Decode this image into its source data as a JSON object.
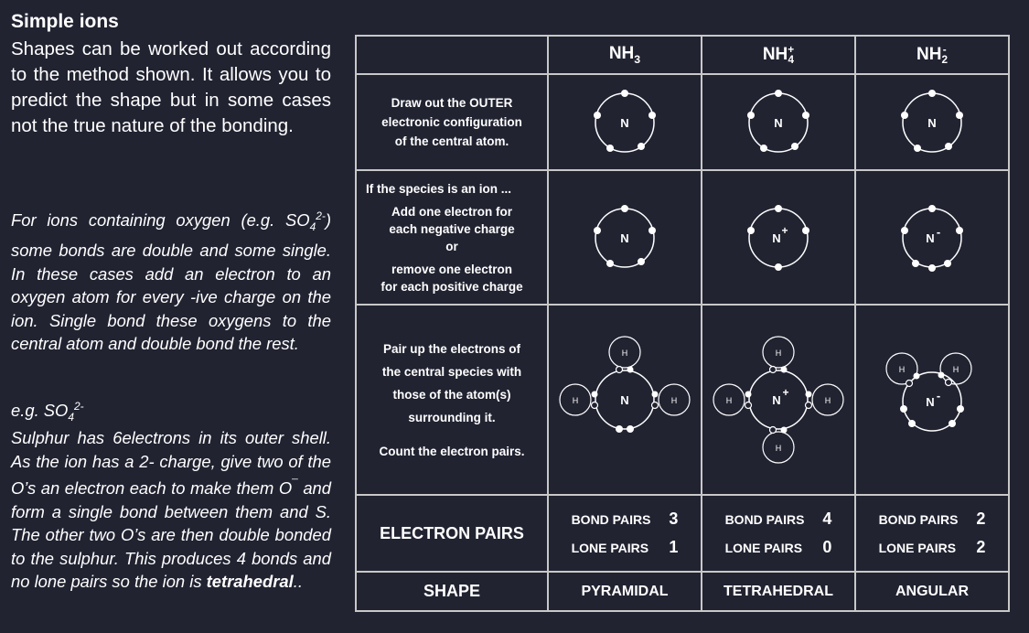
{
  "left": {
    "title": "Simple ions",
    "intro": "Shapes can be worked out according to the method shown. It allows you to predict the shape but in some cases not the true nature of the bonding.",
    "oxygen_a": "For ions containing oxygen (e.g. SO",
    "oxygen_b": "4",
    "oxygen_c": "2-",
    "oxygen_d": ") some bonds are double and some single. In these cases add an electron to an oxygen atom for every -ive charge on the ion. Single bond these oxygens to the central atom and double bond the rest.",
    "eg_a": "e.g. SO",
    "eg_b": "4",
    "eg_c": "2-",
    "expl_a": "Sulphur has 6electrons in its outer shell. As the ion has a 2- charge, give two of the O’s an electron each to make them O",
    "expl_minus": "¯",
    "expl_b": "and form a single bond between them and S. The other two O’s are then double bonded to the sulphur. This produces 4 bonds and no lone pairs so the ion is ",
    "expl_bold": "tetrahedral",
    "expl_end": ".."
  },
  "table": {
    "headers": [
      {
        "base": "NH",
        "sub": "3",
        "sup": ""
      },
      {
        "base": "NH",
        "sub": "4",
        "sup": "+"
      },
      {
        "base": "NH",
        "sub": "2",
        "sup": "-"
      }
    ],
    "step1": [
      "Draw out the OUTER",
      "electronic configuration",
      "of the central atom."
    ],
    "step2": {
      "head": "If the species is an ion ...",
      "l1": "Add one electron for",
      "l2": "each negative charge",
      "l3": "or",
      "l4": "remove one electron",
      "l5": "for each positive charge"
    },
    "step3": {
      "l1": "Pair up the electrons of",
      "l2": "the central species with",
      "l3": "those of the atom(s)",
      "l4": "surrounding it.",
      "l5": "Count the electron pairs."
    },
    "atom_labels": {
      "n": "N",
      "n_plus": "N",
      "plus": "+",
      "n_minus": "N",
      "minus": "-",
      "h": "H"
    },
    "electron_pairs_label": "ELECTRON PAIRS",
    "bond_pairs_label": "BOND PAIRS",
    "lone_pairs_label": "LONE PAIRS",
    "pairs": [
      {
        "bond": "3",
        "lone": "1"
      },
      {
        "bond": "4",
        "lone": "0"
      },
      {
        "bond": "2",
        "lone": "2"
      }
    ],
    "shape_label": "SHAPE",
    "shapes": [
      "PYRAMIDAL",
      "TETRAHEDRAL",
      "ANGULAR"
    ]
  },
  "colors": {
    "background": "#212331",
    "text": "#ffffff",
    "grid": "#c8c8c8"
  }
}
